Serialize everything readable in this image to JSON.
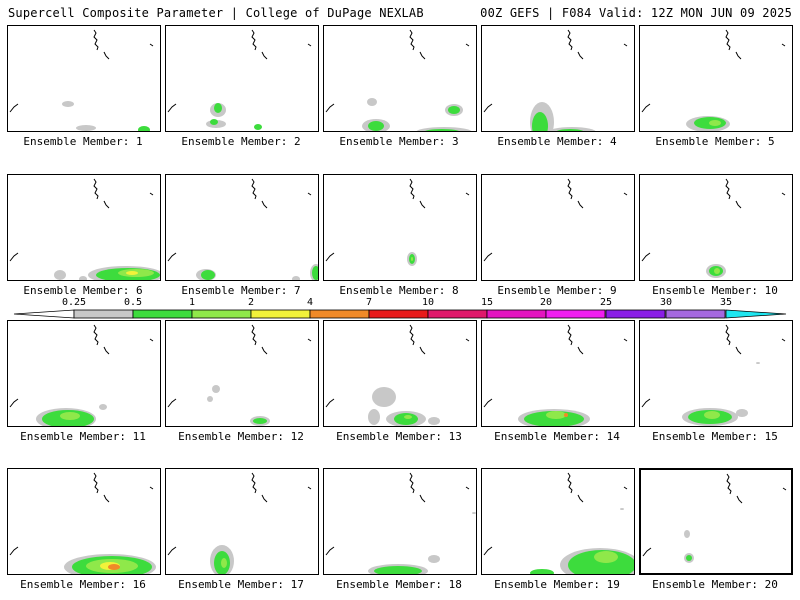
{
  "header": {
    "title": "Supercell Composite Parameter | College of DuPage NEXLAB",
    "run_info": "00Z GEFS | F084 Valid: 12Z MON JUN 09 2025"
  },
  "colors": {
    "c025": "#c8c8c8",
    "c05": "#3ddc3d",
    "c1": "#8fe84a",
    "c2": "#f2f23a",
    "c4": "#f08a28",
    "c7": "#e81a1a",
    "c10": "#e0186b",
    "c15": "#e414c0",
    "c20": "#f01ef0",
    "c25": "#8a1ee6",
    "c30": "#a569e0",
    "c35": "#1ee6f0"
  },
  "colorbar": {
    "labels": [
      "0.25",
      "0.5",
      "1",
      "2",
      "4",
      "7",
      "10",
      "15",
      "20",
      "25",
      "30",
      "35"
    ]
  },
  "panels": [
    {
      "label": "Ensemble Member: 1",
      "blobs": [
        [
          136,
          104,
          6,
          4,
          "c05"
        ],
        [
          60,
          78,
          6,
          3,
          "c025"
        ],
        [
          78,
          102,
          10,
          3,
          "c025"
        ]
      ]
    },
    {
      "label": "Ensemble Member: 2",
      "blobs": [
        [
          52,
          84,
          8,
          7,
          "c025"
        ],
        [
          52,
          82,
          4,
          5,
          "c05"
        ],
        [
          92,
          101,
          4,
          3,
          "c05"
        ],
        [
          50,
          98,
          10,
          4,
          "c025"
        ],
        [
          48,
          96,
          4,
          3,
          "c05"
        ]
      ]
    },
    {
      "label": "Ensemble Member: 3",
      "blobs": [
        [
          52,
          100,
          14,
          7,
          "c025"
        ],
        [
          52,
          100,
          8,
          5,
          "c05"
        ],
        [
          130,
          84,
          9,
          6,
          "c025"
        ],
        [
          130,
          84,
          6,
          4,
          "c05"
        ],
        [
          120,
          106,
          28,
          5,
          "c025"
        ],
        [
          118,
          106,
          18,
          3,
          "c05"
        ],
        [
          48,
          76,
          5,
          4,
          "c025"
        ]
      ]
    },
    {
      "label": "Ensemble Member: 4",
      "blobs": [
        [
          60,
          96,
          12,
          20,
          "c025"
        ],
        [
          58,
          100,
          8,
          14,
          "c05"
        ],
        [
          90,
          106,
          24,
          5,
          "c025"
        ],
        [
          88,
          106,
          14,
          3,
          "c05"
        ]
      ]
    },
    {
      "label": "Ensemble Member: 5",
      "blobs": [
        [
          68,
          98,
          22,
          8,
          "c025"
        ],
        [
          70,
          97,
          16,
          6,
          "c05"
        ],
        [
          75,
          97,
          6,
          3,
          "c1"
        ]
      ]
    },
    {
      "label": "Ensemble Member: 6",
      "blobs": [
        [
          118,
          100,
          38,
          9,
          "c025"
        ],
        [
          120,
          100,
          32,
          7,
          "c05"
        ],
        [
          128,
          98,
          18,
          4,
          "c1"
        ],
        [
          124,
          98,
          6,
          2,
          "c2"
        ],
        [
          52,
          100,
          6,
          5,
          "c025"
        ],
        [
          75,
          104,
          4,
          3,
          "c025"
        ]
      ]
    },
    {
      "label": "Ensemble Member: 7",
      "blobs": [
        [
          40,
          100,
          10,
          6,
          "c025"
        ],
        [
          42,
          100,
          7,
          5,
          "c05"
        ],
        [
          150,
          98,
          6,
          9,
          "c025"
        ],
        [
          150,
          98,
          4,
          7,
          "c05"
        ],
        [
          130,
          104,
          4,
          3,
          "c025"
        ]
      ]
    },
    {
      "label": "Ensemble Member: 8",
      "blobs": [
        [
          88,
          84,
          5,
          7,
          "c025"
        ],
        [
          88,
          84,
          3,
          5,
          "c05"
        ],
        [
          88,
          84,
          1,
          2,
          "c1"
        ]
      ]
    },
    {
      "label": "Ensemble Member: 9",
      "blobs": []
    },
    {
      "label": "Ensemble Member: 10",
      "blobs": [
        [
          76,
          96,
          10,
          7,
          "c025"
        ],
        [
          76,
          96,
          7,
          5,
          "c05"
        ],
        [
          77,
          96,
          3,
          3,
          "c1"
        ]
      ]
    },
    {
      "label": "Ensemble Member: 11",
      "blobs": [
        [
          58,
          98,
          30,
          11,
          "c025"
        ],
        [
          60,
          98,
          26,
          9,
          "c05"
        ],
        [
          62,
          95,
          10,
          4,
          "c1"
        ],
        [
          95,
          86,
          4,
          3,
          "c025"
        ]
      ]
    },
    {
      "label": "Ensemble Member: 12",
      "blobs": [
        [
          94,
          100,
          10,
          5,
          "c025"
        ],
        [
          94,
          100,
          7,
          3,
          "c05"
        ],
        [
          50,
          68,
          4,
          4,
          "c025"
        ],
        [
          44,
          78,
          3,
          3,
          "c025"
        ]
      ]
    },
    {
      "label": "Ensemble Member: 13",
      "blobs": [
        [
          60,
          76,
          12,
          10,
          "c025"
        ],
        [
          50,
          96,
          6,
          8,
          "c025"
        ],
        [
          82,
          98,
          20,
          8,
          "c025"
        ],
        [
          82,
          98,
          12,
          6,
          "c05"
        ],
        [
          84,
          96,
          4,
          2,
          "c1"
        ],
        [
          110,
          100,
          6,
          4,
          "c025"
        ]
      ]
    },
    {
      "label": "Ensemble Member: 14",
      "blobs": [
        [
          72,
          98,
          36,
          10,
          "c025"
        ],
        [
          72,
          98,
          30,
          8,
          "c05"
        ],
        [
          74,
          94,
          10,
          4,
          "c1"
        ],
        [
          84,
          94,
          2,
          2,
          "c4"
        ]
      ]
    },
    {
      "label": "Ensemble Member: 15",
      "blobs": [
        [
          70,
          96,
          28,
          9,
          "c025"
        ],
        [
          70,
          96,
          22,
          7,
          "c05"
        ],
        [
          72,
          94,
          8,
          4,
          "c1"
        ],
        [
          102,
          92,
          6,
          4,
          "c025"
        ],
        [
          118,
          42,
          2,
          1,
          "c025"
        ]
      ]
    },
    {
      "label": "Ensemble Member: 16",
      "blobs": [
        [
          102,
          98,
          46,
          13,
          "c025"
        ],
        [
          104,
          98,
          40,
          11,
          "c05"
        ],
        [
          104,
          97,
          26,
          7,
          "c1"
        ],
        [
          102,
          97,
          10,
          4,
          "c2"
        ],
        [
          106,
          98,
          6,
          3,
          "c4"
        ]
      ]
    },
    {
      "label": "Ensemble Member: 17",
      "blobs": [
        [
          56,
          92,
          12,
          16,
          "c025"
        ],
        [
          56,
          94,
          8,
          12,
          "c05"
        ],
        [
          58,
          94,
          3,
          5,
          "c1"
        ]
      ]
    },
    {
      "label": "Ensemble Member: 18",
      "blobs": [
        [
          74,
          102,
          30,
          7,
          "c025"
        ],
        [
          74,
          102,
          24,
          5,
          "c05"
        ],
        [
          110,
          90,
          6,
          4,
          "c025"
        ],
        [
          150,
          44,
          2,
          1,
          "c025"
        ]
      ]
    },
    {
      "label": "Ensemble Member: 19",
      "blobs": [
        [
          118,
          96,
          40,
          17,
          "c025"
        ],
        [
          120,
          96,
          34,
          15,
          "c05"
        ],
        [
          124,
          88,
          12,
          6,
          "c1"
        ],
        [
          60,
          104,
          12,
          4,
          "c05"
        ],
        [
          140,
          40,
          2,
          1,
          "c025"
        ]
      ]
    },
    {
      "label": "Ensemble Member: 20",
      "blobs": [
        [
          48,
          88,
          5,
          5,
          "c025"
        ],
        [
          48,
          88,
          3,
          3,
          "c05"
        ],
        [
          46,
          64,
          3,
          4,
          "c025"
        ]
      ]
    }
  ]
}
